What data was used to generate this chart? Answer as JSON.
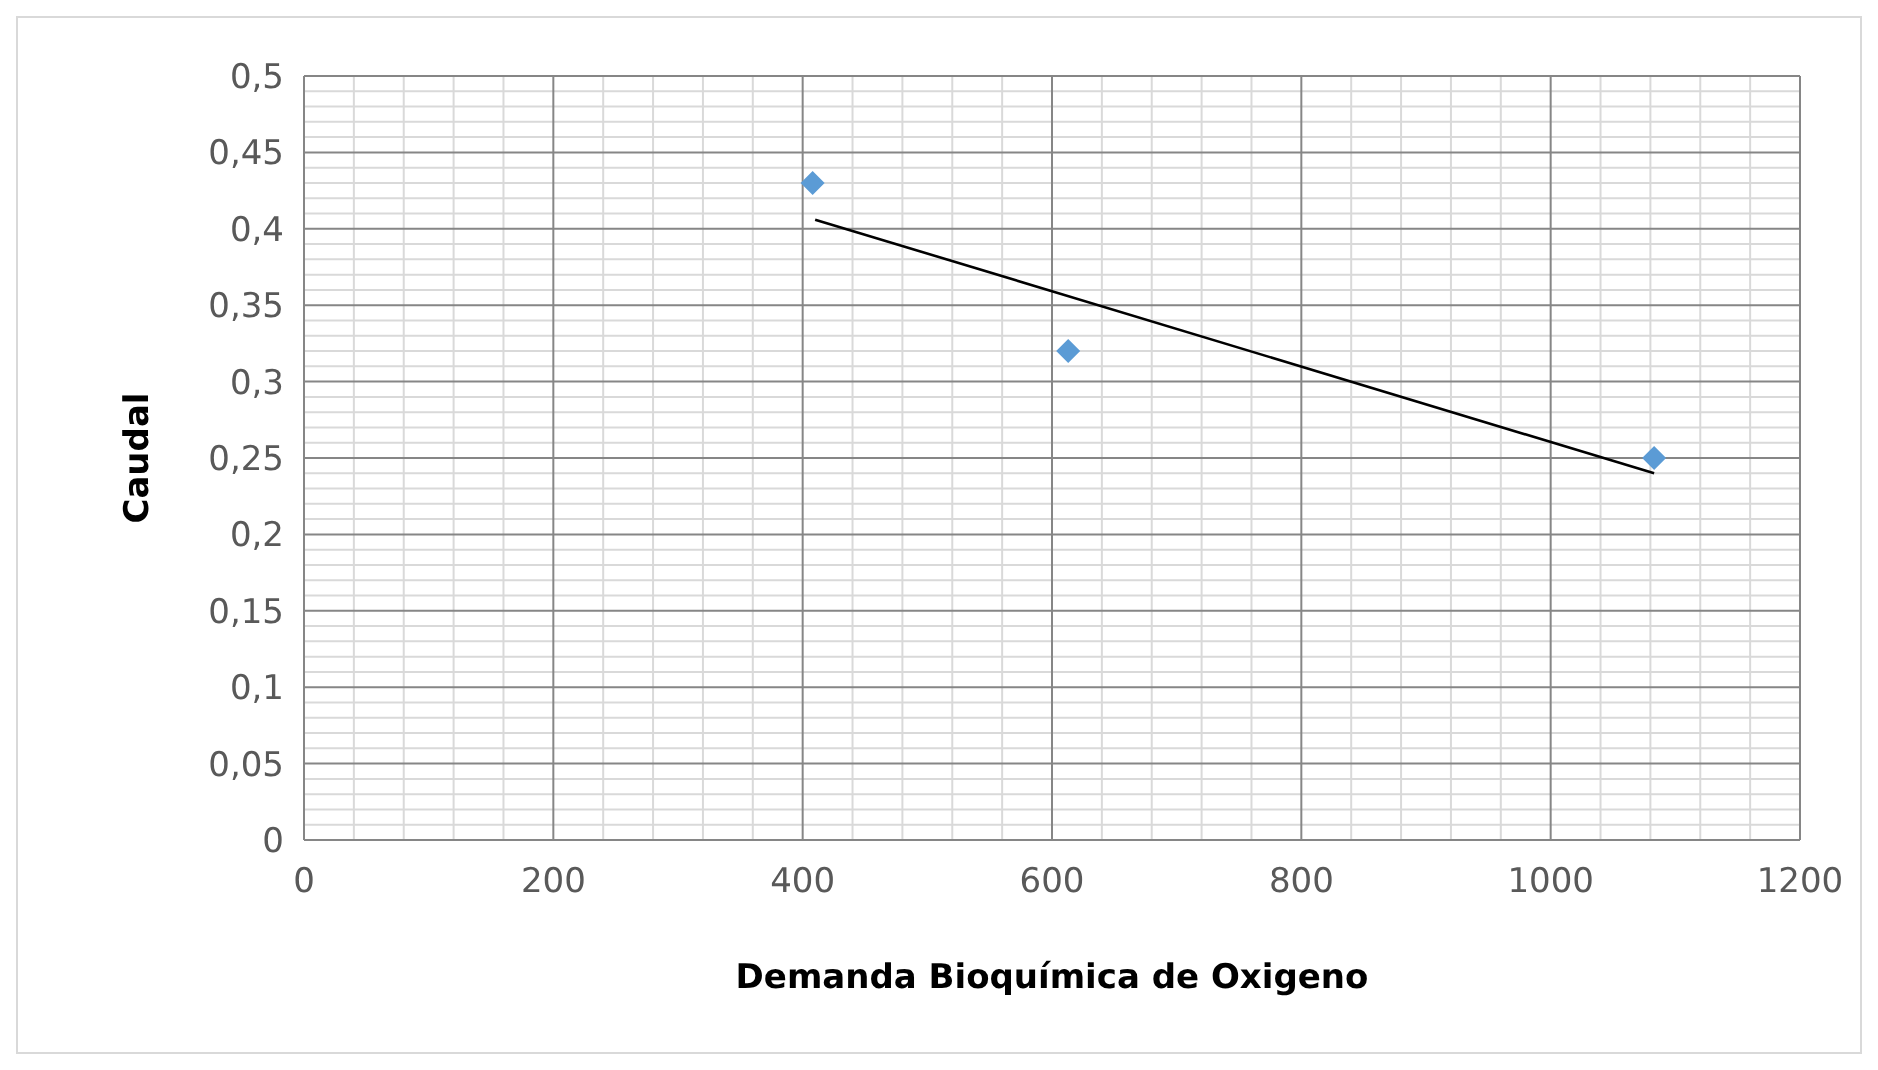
{
  "chart_data": {
    "type": "scatter",
    "xlabel": "Demanda Bioquímica de Oxigeno",
    "ylabel": "Caudal",
    "xlim": [
      0,
      1200
    ],
    "xticks": [
      0,
      200,
      400,
      600,
      800,
      1000,
      1200
    ],
    "ylim": [
      0,
      0.5
    ],
    "yticks": [
      {
        "value": 0,
        "label": "0"
      },
      {
        "value": 0.05,
        "label": "0,05"
      },
      {
        "value": 0.1,
        "label": "0,1"
      },
      {
        "value": 0.15,
        "label": "0,15"
      },
      {
        "value": 0.2,
        "label": "0,2"
      },
      {
        "value": 0.25,
        "label": "0,25"
      },
      {
        "value": 0.3,
        "label": "0,3"
      },
      {
        "value": 0.35,
        "label": "0,35"
      },
      {
        "value": 0.4,
        "label": "0,4"
      },
      {
        "value": 0.45,
        "label": "0,45"
      },
      {
        "value": 0.5,
        "label": "0,5"
      }
    ],
    "grid": true,
    "series": [
      {
        "color": "#5b9bd5",
        "marker": "diamond",
        "x": [
          408,
          613,
          1083
        ],
        "values": [
          0.43,
          0.32,
          0.25
        ]
      },
      {
        "type": "line",
        "color": "#000000",
        "marker": "none",
        "line_style": "solid",
        "x": [
          410,
          1083
        ],
        "values": [
          0.406,
          0.24
        ]
      }
    ]
  }
}
